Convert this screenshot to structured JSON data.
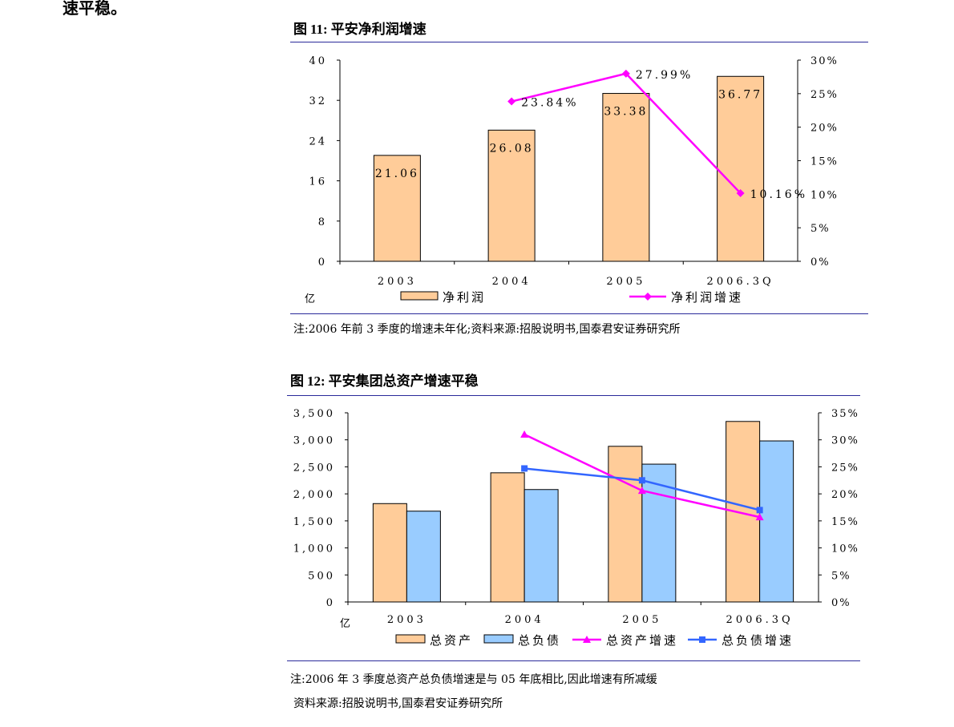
{
  "top_fragment": "速平稳。",
  "fig1": {
    "title_prefix": "图",
    "title_number": "11:",
    "title_text": "平安净利润增速",
    "note": "注:2006 年前 3 季度的增速未年化;资料来源:招股说明书,国泰君安证券研究所"
  },
  "fig2": {
    "title_prefix": "图",
    "title_number": "12:",
    "title_text": "平安集团总资产增速平稳",
    "note_line1": "注:2006 年 3 季度总资产总负债增速是与 05 年底相比,因此增速有所减缓",
    "note_line2": "资料来源:招股说明书,国泰君安证券研究所"
  },
  "chart_data": [
    {
      "type": "bar",
      "categories": [
        "2003",
        "2004",
        "2005",
        "2006.3Q"
      ],
      "unit_label": "亿",
      "ylim": [
        0,
        40
      ],
      "y_ticks": [
        "40",
        "32",
        "24",
        "16",
        "8",
        "0"
      ],
      "y2lim": [
        0,
        30
      ],
      "y2_ticks": [
        "30%",
        "25%",
        "20%",
        "15%",
        "10%",
        "5%",
        "0%"
      ],
      "series": [
        {
          "name": "净利润",
          "kind": "bar",
          "color": "#FFCC99",
          "values": [
            21.06,
            26.08,
            33.38,
            36.77
          ],
          "labels": [
            "21.06",
            "26.08",
            "33.38",
            "36.77"
          ]
        },
        {
          "name": "净利润增速",
          "kind": "line",
          "axis": "right",
          "color": "#FF00FF",
          "marker": "diamond",
          "values": [
            null,
            23.84,
            27.99,
            10.16
          ],
          "labels": [
            "",
            "23.84%",
            "27.99%",
            "10.16%"
          ]
        }
      ],
      "legend": "bottom",
      "grid": false
    },
    {
      "type": "bar",
      "categories": [
        "2003",
        "2004",
        "2005",
        "2006.3Q"
      ],
      "unit_label": "亿",
      "ylim": [
        0,
        3500
      ],
      "y_ticks": [
        "3,500",
        "3,000",
        "2,500",
        "2,000",
        "1,500",
        "1,000",
        "500",
        "0"
      ],
      "y2lim": [
        0,
        35
      ],
      "y2_ticks": [
        "35%",
        "30%",
        "25%",
        "20%",
        "15%",
        "10%",
        "5%",
        "0%"
      ],
      "series": [
        {
          "name": "总资产",
          "kind": "bar",
          "color": "#FFCC99",
          "values": [
            1820,
            2390,
            2880,
            3340
          ]
        },
        {
          "name": "总负债",
          "kind": "bar",
          "color": "#99CCFF",
          "values": [
            1680,
            2080,
            2550,
            2980
          ]
        },
        {
          "name": "总资产增速",
          "kind": "line",
          "axis": "right",
          "color": "#FF00FF",
          "marker": "triangle",
          "values": [
            null,
            31.0,
            20.6,
            15.7
          ]
        },
        {
          "name": "总负债增速",
          "kind": "line",
          "axis": "right",
          "color": "#3366FF",
          "marker": "square",
          "values": [
            null,
            24.7,
            22.5,
            17.0
          ]
        }
      ],
      "legend": "bottom",
      "grid": false
    }
  ]
}
